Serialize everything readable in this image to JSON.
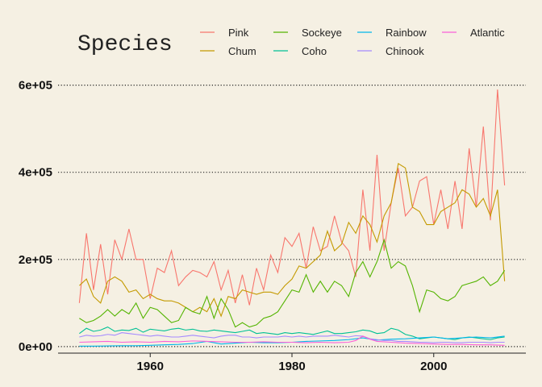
{
  "chart_data": {
    "type": "line",
    "legend": {
      "title": "Species",
      "placement": "top"
    },
    "xlim": [
      1947,
      2013
    ],
    "ylim": [
      -15000,
      640000
    ],
    "x_ticks": [
      1960,
      1980,
      2000
    ],
    "x_tick_labels": [
      "1960",
      "1980",
      "2000"
    ],
    "y_ticks": [
      0,
      200000,
      400000,
      600000
    ],
    "y_tick_labels": [
      "0e+00",
      "2e+05",
      "4e+05",
      "6e+05"
    ],
    "grid": {
      "horizontal_dotted": true,
      "vertical": false
    },
    "colors": {
      "Pink": "#f8766d",
      "Chum": "#c49a00",
      "Sockeye": "#53b400",
      "Coho": "#00c094",
      "Rainbow": "#00b6eb",
      "Chinook": "#a58aff",
      "Atlantic": "#fb61d7"
    },
    "series": [
      {
        "name": "Pink",
        "x": [
          1950,
          1951,
          1952,
          1953,
          1954,
          1955,
          1956,
          1957,
          1958,
          1959,
          1960,
          1961,
          1962,
          1963,
          1964,
          1965,
          1966,
          1967,
          1968,
          1969,
          1970,
          1971,
          1972,
          1973,
          1974,
          1975,
          1976,
          1977,
          1978,
          1979,
          1980,
          1981,
          1982,
          1983,
          1984,
          1985,
          1986,
          1987,
          1988,
          1989,
          1990,
          1991,
          1992,
          1993,
          1994,
          1995,
          1996,
          1997,
          1998,
          1999,
          2000,
          2001,
          2002,
          2003,
          2004,
          2005,
          2006,
          2007,
          2008,
          2009,
          2010
        ],
        "values": [
          100000,
          260000,
          130000,
          235000,
          120000,
          245000,
          200000,
          270000,
          200000,
          200000,
          110000,
          180000,
          170000,
          220000,
          140000,
          160000,
          175000,
          170000,
          160000,
          195000,
          130000,
          175000,
          100000,
          165000,
          95000,
          180000,
          130000,
          210000,
          170000,
          250000,
          230000,
          260000,
          180000,
          275000,
          220000,
          230000,
          300000,
          240000,
          220000,
          160000,
          360000,
          220000,
          440000,
          220000,
          330000,
          410000,
          300000,
          320000,
          380000,
          390000,
          280000,
          360000,
          270000,
          380000,
          270000,
          455000,
          320000,
          505000,
          290000,
          590000,
          370000
        ]
      },
      {
        "name": "Chum",
        "x": [
          1950,
          1951,
          1952,
          1953,
          1954,
          1955,
          1956,
          1957,
          1958,
          1959,
          1960,
          1961,
          1962,
          1963,
          1964,
          1965,
          1966,
          1967,
          1968,
          1969,
          1970,
          1971,
          1972,
          1973,
          1974,
          1975,
          1976,
          1977,
          1978,
          1979,
          1980,
          1981,
          1982,
          1983,
          1984,
          1985,
          1986,
          1987,
          1988,
          1989,
          1990,
          1991,
          1992,
          1993,
          1994,
          1995,
          1996,
          1997,
          1998,
          1999,
          2000,
          2001,
          2002,
          2003,
          2004,
          2005,
          2006,
          2007,
          2008,
          2009,
          2010
        ],
        "values": [
          140000,
          155000,
          115000,
          100000,
          150000,
          160000,
          150000,
          125000,
          130000,
          110000,
          120000,
          110000,
          105000,
          105000,
          100000,
          90000,
          80000,
          90000,
          80000,
          110000,
          70000,
          115000,
          110000,
          130000,
          125000,
          120000,
          125000,
          125000,
          120000,
          140000,
          155000,
          185000,
          180000,
          195000,
          210000,
          265000,
          220000,
          235000,
          285000,
          260000,
          300000,
          280000,
          240000,
          300000,
          330000,
          420000,
          410000,
          320000,
          310000,
          280000,
          280000,
          310000,
          320000,
          330000,
          360000,
          350000,
          320000,
          340000,
          300000,
          360000,
          150000
        ]
      },
      {
        "name": "Sockeye",
        "x": [
          1950,
          1951,
          1952,
          1953,
          1954,
          1955,
          1956,
          1957,
          1958,
          1959,
          1960,
          1961,
          1962,
          1963,
          1964,
          1965,
          1966,
          1967,
          1968,
          1969,
          1970,
          1971,
          1972,
          1973,
          1974,
          1975,
          1976,
          1977,
          1978,
          1979,
          1980,
          1981,
          1982,
          1983,
          1984,
          1985,
          1986,
          1987,
          1988,
          1989,
          1990,
          1991,
          1992,
          1993,
          1994,
          1995,
          1996,
          1997,
          1998,
          1999,
          2000,
          2001,
          2002,
          2003,
          2004,
          2005,
          2006,
          2007,
          2008,
          2009,
          2010
        ],
        "values": [
          65000,
          55000,
          60000,
          70000,
          85000,
          70000,
          85000,
          75000,
          100000,
          65000,
          90000,
          85000,
          70000,
          55000,
          60000,
          90000,
          80000,
          75000,
          115000,
          65000,
          110000,
          85000,
          45000,
          55000,
          45000,
          50000,
          65000,
          70000,
          80000,
          105000,
          130000,
          125000,
          165000,
          125000,
          150000,
          125000,
          150000,
          140000,
          115000,
          170000,
          195000,
          160000,
          195000,
          245000,
          180000,
          195000,
          185000,
          140000,
          80000,
          130000,
          125000,
          110000,
          105000,
          115000,
          140000,
          145000,
          150000,
          160000,
          140000,
          150000,
          175000
        ]
      },
      {
        "name": "Coho",
        "x": [
          1950,
          1951,
          1952,
          1953,
          1954,
          1955,
          1956,
          1957,
          1958,
          1959,
          1960,
          1961,
          1962,
          1963,
          1964,
          1965,
          1966,
          1967,
          1968,
          1969,
          1970,
          1971,
          1972,
          1973,
          1974,
          1975,
          1976,
          1977,
          1978,
          1979,
          1980,
          1981,
          1982,
          1983,
          1984,
          1985,
          1986,
          1987,
          1988,
          1989,
          1990,
          1991,
          1992,
          1993,
          1994,
          1995,
          1996,
          1997,
          1998,
          1999,
          2000,
          2001,
          2002,
          2003,
          2004,
          2005,
          2006,
          2007,
          2008,
          2009,
          2010
        ],
        "values": [
          30000,
          42000,
          35000,
          38000,
          45000,
          35000,
          38000,
          37000,
          42000,
          33000,
          40000,
          38000,
          36000,
          40000,
          42000,
          38000,
          40000,
          36000,
          35000,
          38000,
          36000,
          34000,
          32000,
          35000,
          38000,
          30000,
          32000,
          30000,
          28000,
          32000,
          30000,
          32000,
          30000,
          28000,
          32000,
          36000,
          30000,
          30000,
          32000,
          34000,
          38000,
          36000,
          30000,
          32000,
          42000,
          38000,
          28000,
          24000,
          18000,
          20000,
          22000,
          20000,
          18000,
          16000,
          20000,
          22000,
          20000,
          18000,
          16000,
          20000,
          22000
        ]
      },
      {
        "name": "Rainbow",
        "x": [
          1950,
          1952,
          1954,
          1956,
          1958,
          1960,
          1962,
          1964,
          1966,
          1968,
          1970,
          1972,
          1974,
          1976,
          1978,
          1980,
          1982,
          1984,
          1986,
          1988,
          1990,
          1992,
          1994,
          1996,
          1998,
          2000,
          2002,
          2004,
          2006,
          2008,
          2010
        ],
        "values": [
          1000,
          1000,
          1500,
          2000,
          2000,
          3000,
          4000,
          5000,
          7000,
          12000,
          6000,
          8000,
          10000,
          9000,
          9000,
          10000,
          12000,
          13000,
          14000,
          16000,
          20000,
          15000,
          17000,
          18000,
          20000,
          22000,
          18000,
          20000,
          22000,
          20000,
          24000
        ]
      },
      {
        "name": "Chinook",
        "x": [
          1950,
          1951,
          1952,
          1953,
          1954,
          1955,
          1956,
          1957,
          1958,
          1959,
          1960,
          1961,
          1962,
          1963,
          1964,
          1965,
          1966,
          1967,
          1968,
          1969,
          1970,
          1971,
          1972,
          1973,
          1974,
          1975,
          1976,
          1977,
          1978,
          1979,
          1980,
          1981,
          1982,
          1983,
          1984,
          1985,
          1986,
          1987,
          1988,
          1989,
          1990,
          1991,
          1992,
          1993,
          1994,
          1995,
          1996,
          1997,
          1998,
          1999,
          2000,
          2001,
          2002,
          2003,
          2004,
          2005,
          2006,
          2007,
          2008,
          2009,
          2010
        ],
        "values": [
          22000,
          26000,
          24000,
          25000,
          28000,
          26000,
          32000,
          30000,
          28000,
          26000,
          24000,
          26000,
          24000,
          22000,
          22000,
          24000,
          26000,
          24000,
          22000,
          20000,
          24000,
          26000,
          26000,
          22000,
          22000,
          20000,
          22000,
          22000,
          22000,
          24000,
          22000,
          24000,
          22000,
          24000,
          24000,
          24000,
          26000,
          24000,
          22000,
          25000,
          24000,
          18000,
          16000,
          14000,
          14000,
          12000,
          12000,
          11000,
          10000,
          10000,
          9000,
          10000,
          10000,
          9000,
          9000,
          10000,
          10000,
          10000,
          9000,
          10000,
          10000
        ]
      },
      {
        "name": "Atlantic",
        "x": [
          1950,
          1952,
          1954,
          1956,
          1958,
          1960,
          1962,
          1964,
          1966,
          1968,
          1970,
          1972,
          1974,
          1976,
          1978,
          1980,
          1982,
          1984,
          1986,
          1988,
          1989,
          1990,
          1991,
          1992,
          1994,
          1996,
          1998,
          2000,
          2002,
          2004,
          2006,
          2008,
          2010
        ],
        "values": [
          10000,
          11000,
          12000,
          10000,
          11000,
          10000,
          12000,
          11000,
          13000,
          12000,
          11000,
          10000,
          10000,
          11000,
          10000,
          10000,
          9000,
          10000,
          9000,
          10000,
          14000,
          24000,
          17000,
          12000,
          10000,
          8000,
          7000,
          6000,
          5000,
          5000,
          4000,
          4000,
          3000
        ]
      }
    ]
  }
}
